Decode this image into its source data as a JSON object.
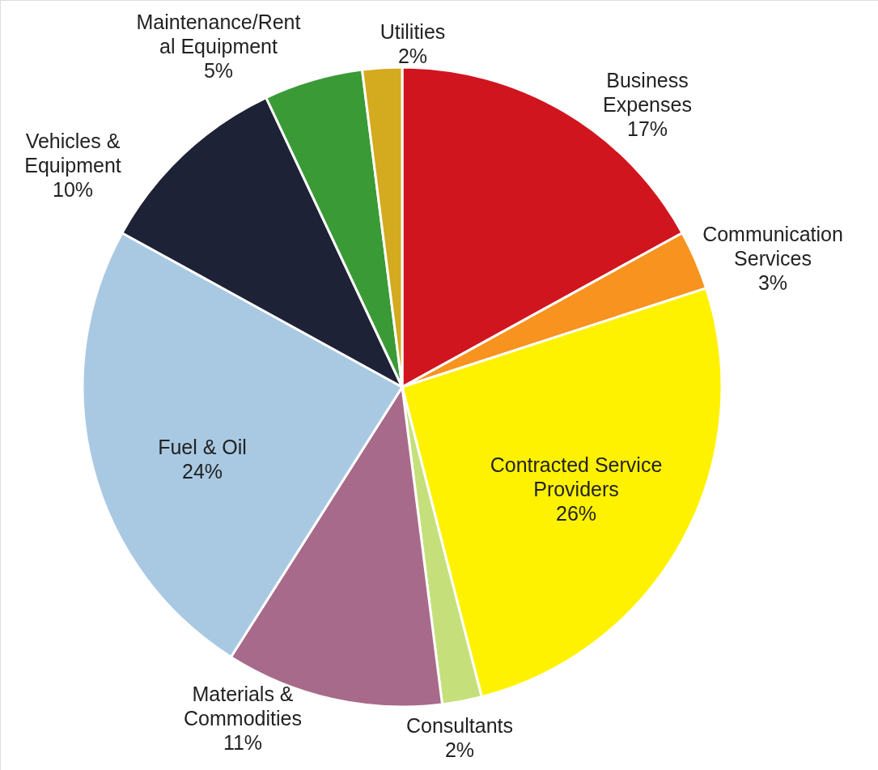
{
  "chart_data": {
    "type": "pie",
    "categories": [
      "Business Expenses",
      "Communication Services",
      "Contracted Service Providers",
      "Consultants",
      "Materials & Commodities",
      "Fuel & Oil",
      "Vehicles & Equipment",
      "Maintenance/Rental Equipment",
      "Utilities"
    ],
    "values": [
      17,
      3,
      26,
      2,
      11,
      24,
      10,
      5,
      2
    ],
    "value_labels": [
      "17%",
      "3%",
      "26%",
      "2%",
      "11%",
      "24%",
      "10%",
      "5%",
      "2%"
    ],
    "colors": [
      "#d0151f",
      "#f7931e",
      "#fff200",
      "#c5e07b",
      "#a86a8a",
      "#a9c9e3",
      "#1e2236",
      "#3a9a35",
      "#d4aa1f"
    ]
  }
}
